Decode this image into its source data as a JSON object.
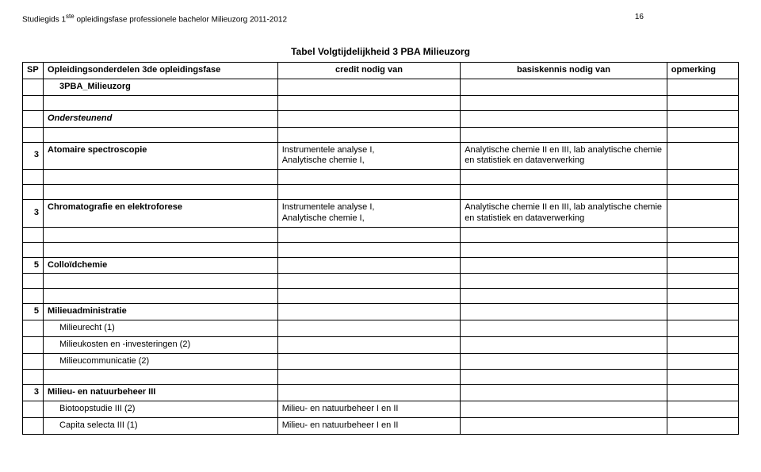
{
  "header": {
    "left_prefix": "Studiegids 1",
    "left_super": "ste",
    "left_suffix": " opleidingsfase professionele bachelor Milieuzorg 2011-2012",
    "page_number": "16"
  },
  "table": {
    "title": "Tabel Volgtijdelijkheid 3 PBA Milieuzorg",
    "headers": {
      "sp": "SP",
      "onderdelen": "Opleidingsonderdelen 3de opleidingsfase",
      "credit": "credit nodig van",
      "basiskennis": "basiskennis nodig van",
      "opmerking": "opmerking"
    },
    "programme_label": "3PBA_Milieuzorg",
    "section_ondersteunend": "Ondersteunend",
    "rows": {
      "atomaire": {
        "sp": "3",
        "label": "Atomaire spectroscopie",
        "credit": "Instrumentele analyse I,\nAnalytische chemie I,",
        "basis": "Analytische chemie II en III, lab analytische chemie en statistiek en dataverwerking"
      },
      "chromatografie": {
        "sp": "3",
        "label": "Chromatografie en elektroforese",
        "credit": "Instrumentele analyse I,\nAnalytische chemie I,",
        "basis": "Analytische chemie II en III, lab analytische chemie en statistiek en dataverwerking"
      },
      "colloid": {
        "sp": "5",
        "label": "Colloïdchemie"
      },
      "milieuadmin": {
        "sp": "5",
        "label": "Milieuadministratie",
        "sub1": "Milieurecht (1)",
        "sub2": "Milieukosten en -investeringen (2)",
        "sub3": "Milieucommunicatie (2)"
      },
      "natuurbeheer": {
        "sp": "3",
        "label": "Milieu- en natuurbeheer III",
        "sub1": {
          "label": "Biotoopstudie III (2)",
          "credit": "Milieu- en natuurbeheer I en II"
        },
        "sub2": {
          "label": "Capita selecta III (1)",
          "credit": "Milieu- en natuurbeheer I en II"
        }
      }
    }
  }
}
